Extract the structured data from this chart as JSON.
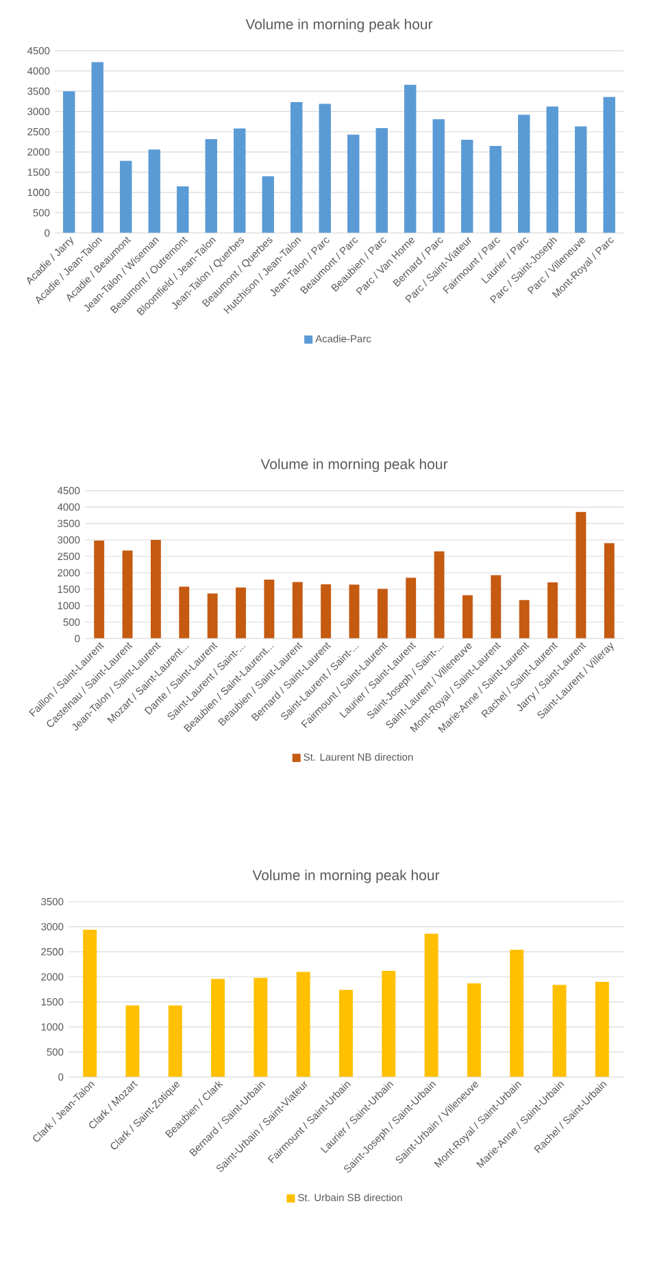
{
  "chart_data": [
    {
      "type": "bar",
      "title": "Volume in morning peak hour",
      "categories": [
        "Acadie / Jarry",
        "Acadie / Jean-Talon",
        "Acadie / Beaumont",
        "Jean-Talon / Wiseman",
        "Beaumont / Outremont",
        "Bloomfield / Jean-Talon",
        "Jean-Talon / Querbes",
        "Beaumont / Querbes",
        "Hutchison / Jean-Talon",
        "Jean-Talon / Parc",
        "Beaumont / Parc",
        "Beaubien / Parc",
        "Parc / Van Horne",
        "Bernard / Parc",
        "Parc / Saint-Viateur",
        "Fairmount / Parc",
        "Laurier / Parc",
        "Parc / Saint-Joseph",
        "Parc / Villeneuve",
        "Mont-Royal / Parc"
      ],
      "series": [
        {
          "name": "Acadie-Parc",
          "color": "#5b9bd5",
          "values": [
            3500,
            4220,
            1780,
            2060,
            1150,
            2320,
            2580,
            1400,
            3230,
            3190,
            2430,
            2590,
            3660,
            2810,
            2300,
            2150,
            2920,
            3120,
            2630,
            3360
          ]
        }
      ],
      "ylim": [
        0,
        4500
      ],
      "yticks": [
        0,
        500,
        1000,
        1500,
        2000,
        2500,
        3000,
        3500,
        4000,
        4500
      ],
      "grid": "y",
      "legend": "bottom"
    },
    {
      "type": "bar",
      "title": "Volume in morning peak hour",
      "categories": [
        "Faillon / Saint-Laurent",
        "Castelnau / Saint-Laurent",
        "Jean-Talon / Saint-Laurent",
        "Mozart / Saint-Laurent...",
        "Dante / Saint-Laurent",
        "Saint-Laurent / Saint-...",
        "Beaubien / Saint-Laurent...",
        "Beaubien / Saint-Laurent",
        "Bernard / Saint-Laurent",
        "Saint-Laurent / Saint-...",
        "Fairmount / Saint-Laurent",
        "Laurier / Saint-Laurent",
        "Saint-Joseph / Saint-...",
        "Saint-Laurent / Villeneuve",
        "Mont-Royal / Saint-Laurent",
        "Marie-Anne / Saint-Laurent",
        "Rachel / Saint-Laurent",
        "Jarry / Saint-Laurent",
        "Saint-Laurent / Villeray"
      ],
      "series": [
        {
          "name": "St. Laurent NB direction",
          "color": "#c55a11",
          "values": [
            2980,
            2680,
            3000,
            1580,
            1370,
            1550,
            1790,
            1720,
            1650,
            1640,
            1510,
            1850,
            2650,
            1320,
            1930,
            1170,
            1710,
            3850,
            2900
          ]
        }
      ],
      "ylim": [
        0,
        4500
      ],
      "yticks": [
        0,
        500,
        1000,
        1500,
        2000,
        2500,
        3000,
        3500,
        4000,
        4500
      ],
      "grid": "y",
      "legend": "bottom"
    },
    {
      "type": "bar",
      "title": "Volume in morning peak hour",
      "categories": [
        "Clark / Jean-Talon",
        "Clark / Mozart",
        "Clark / Saint-Zotique",
        "Beaubien / Clark",
        "Bernard / Saint-Urbain",
        "Saint-Urbain / Saint-Viateur",
        "Fairmount / Saint-Urbain",
        "Laurier / Saint-Urbain",
        "Saint-Joseph / Saint-Urbain",
        "Saint-Urbain / Villeneuve",
        "Mont-Royal / Saint-Urbain",
        "Marie-Anne / Saint-Urbain",
        "Rachel / Saint-Urbain"
      ],
      "series": [
        {
          "name": "St. Urbain SB direction",
          "color": "#ffc000",
          "values": [
            2940,
            1430,
            1430,
            1960,
            1980,
            2100,
            1740,
            2120,
            2860,
            1870,
            2540,
            1840,
            1900
          ]
        }
      ],
      "ylim": [
        0,
        3500
      ],
      "yticks": [
        0,
        500,
        1000,
        1500,
        2000,
        2500,
        3000,
        3500
      ],
      "grid": "y",
      "legend": "bottom"
    }
  ]
}
